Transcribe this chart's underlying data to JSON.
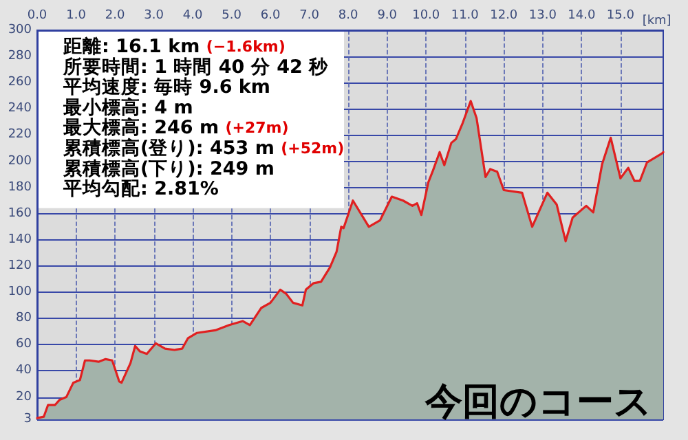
{
  "chart_data": {
    "type": "area",
    "annotations": [
      "距離: 16.1 km (−1.6km)",
      "所要時間: 1 時間 40 分 42 秒",
      "平均速度: 毎時 9.6 km",
      "最小標高: 4 m",
      "最大標高: 246 m (+27m)",
      "累積標高(登り): 453 m (+52m)",
      "累積標高(下り): 249 m",
      "平均勾配: 2.81%",
      "今回のコース"
    ],
    "xlabel": "[km]",
    "series": [
      {
        "color": "#e02020",
        "x": [
          0,
          0.17,
          0.28,
          0.46,
          0.58,
          0.75,
          0.93,
          1.1,
          1.23,
          1.35,
          1.58,
          1.76,
          1.93,
          2.11,
          2.17,
          2.4,
          2.52,
          2.64,
          2.82,
          3.05,
          3.29,
          3.53,
          3.73,
          3.88,
          4.11,
          4.58,
          4.94,
          5.29,
          5.47,
          5.76,
          6.0,
          6.25,
          6.4,
          6.58,
          6.82,
          6.91,
          7.11,
          7.3,
          7.53,
          7.7,
          7.82,
          7.88,
          8.12,
          8.53,
          8.82,
          9.12,
          9.41,
          9.65,
          9.77,
          9.88,
          10.06,
          10.18,
          10.35,
          10.47,
          10.65,
          10.77,
          10.94,
          11.15,
          11.3,
          11.53,
          11.65,
          11.83,
          12.0,
          12.47,
          12.73,
          12.88,
          13.12,
          13.36,
          13.59,
          13.77,
          14.12,
          14.3,
          14.53,
          14.75,
          15.0,
          15.2,
          15.36,
          15.5,
          15.68,
          16.07,
          16.1
        ],
        "values": [
          4,
          5,
          14,
          14,
          18,
          20,
          31,
          33,
          48,
          48,
          47,
          49,
          48,
          32,
          31,
          46,
          59,
          55,
          53,
          61,
          57,
          56,
          57,
          65,
          69,
          71,
          75,
          78,
          75,
          88,
          92,
          102,
          99,
          92,
          90,
          102,
          107,
          108,
          119,
          131,
          150,
          149,
          170,
          150,
          155,
          173,
          170,
          166,
          168,
          159,
          184,
          193,
          207,
          197,
          214,
          217,
          229,
          246,
          233,
          188,
          194,
          192,
          178,
          176,
          150,
          160,
          176,
          167,
          139,
          157,
          166,
          161,
          198,
          218,
          187,
          195,
          185,
          185,
          199,
          206,
          207
        ]
      }
    ],
    "xlim": [
      0,
      16.1
    ],
    "xticks": [
      {
        "value": 0,
        "label": "0.0"
      },
      {
        "value": 1,
        "label": "1.0"
      },
      {
        "value": 2,
        "label": "2.0"
      },
      {
        "value": 3,
        "label": "3.0"
      },
      {
        "value": 4,
        "label": "4.0"
      },
      {
        "value": 5,
        "label": "5.0"
      },
      {
        "value": 6,
        "label": "6.0"
      },
      {
        "value": 7,
        "label": "7.0"
      },
      {
        "value": 8,
        "label": "8.0"
      },
      {
        "value": 9,
        "label": "9.0"
      },
      {
        "value": 10,
        "label": "10.0"
      },
      {
        "value": 11,
        "label": "11.0"
      },
      {
        "value": 12,
        "label": "12.0"
      },
      {
        "value": 13,
        "label": "13.0"
      },
      {
        "value": 14,
        "label": "14.0"
      },
      {
        "value": 15,
        "label": "15.0"
      }
    ],
    "ylim": [
      3,
      300
    ],
    "yticks": [
      3,
      20,
      40,
      60,
      80,
      100,
      120,
      140,
      160,
      180,
      200,
      220,
      240,
      260,
      280,
      300
    ],
    "grid": true,
    "marker": "none",
    "line_style": "solid"
  }
}
